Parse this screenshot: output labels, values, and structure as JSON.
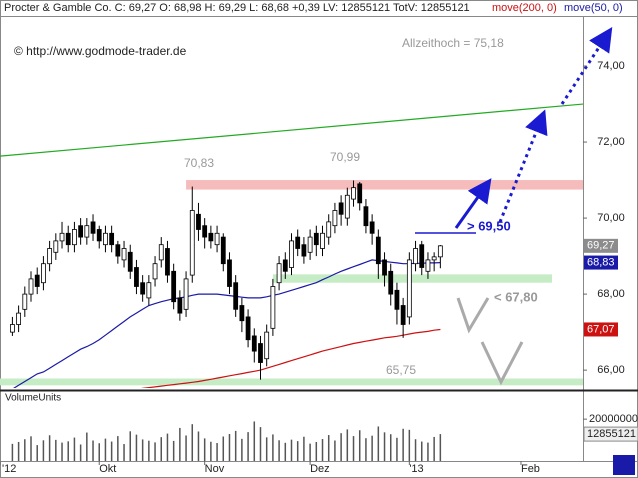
{
  "chart_data": [
    {
      "type": "candlestick",
      "title": "Procter & Gamble Co. C: 69,27 O: 68,98 H: 69,29 L: 68,68 +0,39 LV: 12855121 TotV: 12855121",
      "xlim": [
        -2,
        92
      ],
      "xticks": [
        {
          "value": -2,
          "label": "'12"
        },
        {
          "value": 14,
          "label": "Okt"
        },
        {
          "value": 31,
          "label": "Nov"
        },
        {
          "value": 48,
          "label": "Dez"
        },
        {
          "value": 64,
          "label": "'13"
        },
        {
          "value": 82,
          "label": "Feb"
        }
      ],
      "ylim": [
        65.53,
        75.29
      ],
      "yticks": [
        {
          "value": 66,
          "label": "66,00"
        },
        {
          "value": 68,
          "label": "68,00"
        },
        {
          "value": 70,
          "label": "70,00"
        },
        {
          "value": 72,
          "label": "72,00"
        },
        {
          "value": 74,
          "label": "74,00"
        }
      ],
      "open": [
        67.0,
        67.2,
        67.6,
        68.0,
        68.5,
        68.3,
        68.8,
        69.1,
        69.4,
        69.6,
        69.3,
        69.8,
        69.5,
        69.9,
        69.7,
        69.3,
        69.6,
        69.3,
        68.9,
        69.1,
        68.7,
        68.3,
        67.9,
        68.4,
        68.9,
        69.2,
        68.6,
        67.9,
        67.6,
        68.5,
        70.1,
        69.8,
        69.6,
        69.3,
        69.5,
        68.9,
        68.3,
        67.7,
        67.4,
        66.9,
        66.7,
        66.3,
        67.1,
        68.3,
        68.9,
        68.7,
        69.5,
        69.3,
        69.1,
        69.6,
        69.2,
        69.5,
        69.8,
        70.4,
        70.0,
        70.5,
        70.9,
        70.3,
        69.9,
        69.5,
        68.9,
        68.6,
        68.1,
        67.7,
        67.4,
        68.8,
        69.3,
        68.6,
        68.9,
        68.98
      ],
      "high": [
        67.4,
        67.7,
        68.2,
        68.6,
        68.7,
        69.0,
        69.4,
        69.6,
        69.9,
        69.8,
        69.9,
        70.0,
        70.0,
        70.1,
        69.8,
        69.8,
        69.8,
        69.4,
        69.4,
        69.3,
        68.9,
        68.5,
        68.5,
        69.0,
        69.5,
        69.4,
        68.8,
        68.1,
        68.6,
        70.83,
        70.4,
        70.0,
        69.8,
        69.8,
        69.6,
        69.1,
        68.5,
        67.9,
        67.6,
        67.1,
        66.9,
        67.2,
        68.4,
        69.0,
        69.1,
        69.6,
        69.7,
        69.5,
        69.7,
        69.8,
        69.8,
        70.1,
        70.4,
        70.6,
        70.8,
        70.99,
        70.95,
        70.5,
        70.1,
        69.7,
        69.1,
        68.8,
        68.3,
        67.9,
        69.1,
        69.4,
        69.4,
        69.1,
        69.1,
        69.29
      ],
      "low": [
        66.9,
        67.0,
        67.4,
        67.8,
        68.0,
        68.1,
        68.6,
        68.9,
        69.2,
        69.1,
        69.1,
        69.3,
        69.3,
        69.4,
        69.2,
        69.1,
        69.1,
        68.8,
        68.7,
        68.4,
        68.0,
        67.8,
        67.7,
        68.2,
        68.7,
        68.3,
        67.6,
        67.3,
        67.4,
        68.3,
        69.4,
        69.2,
        69.2,
        69.1,
        68.6,
        68.0,
        67.4,
        67.0,
        66.6,
        66.2,
        65.75,
        66.1,
        66.9,
        68.1,
        68.4,
        68.5,
        69.0,
        68.8,
        68.9,
        69.0,
        69.0,
        69.3,
        69.6,
        69.8,
        69.8,
        70.3,
        70.2,
        69.6,
        69.3,
        68.4,
        68.2,
        67.7,
        67.2,
        66.85,
        67.2,
        68.6,
        68.5,
        68.4,
        68.6,
        68.68
      ],
      "close": [
        67.2,
        67.5,
        68.0,
        68.4,
        68.2,
        68.8,
        69.2,
        69.4,
        69.6,
        69.3,
        69.7,
        69.5,
        69.8,
        69.6,
        69.4,
        69.6,
        69.3,
        69.0,
        69.2,
        68.6,
        68.2,
        68.0,
        68.3,
        68.8,
        69.3,
        68.5,
        67.8,
        67.5,
        68.4,
        70.2,
        69.7,
        69.5,
        69.4,
        69.6,
        68.8,
        68.2,
        67.6,
        67.3,
        66.8,
        66.5,
        66.2,
        67.0,
        68.2,
        68.8,
        68.6,
        69.4,
        69.2,
        69.0,
        69.5,
        69.3,
        69.6,
        69.9,
        70.2,
        70.1,
        70.6,
        70.8,
        70.4,
        69.8,
        69.6,
        68.8,
        68.5,
        68.0,
        67.6,
        67.2,
        68.9,
        69.2,
        68.7,
        68.9,
        68.98,
        69.27
      ],
      "series": [
        {
          "name": "move(200, 0)",
          "color": "#cc1111",
          "values": [
            64.9,
            64.93,
            64.96,
            64.99,
            65.02,
            65.05,
            65.08,
            65.11,
            65.14,
            65.17,
            65.2,
            65.23,
            65.26,
            65.29,
            65.32,
            65.35,
            65.38,
            65.41,
            65.44,
            65.47,
            65.5,
            65.52,
            65.54,
            65.56,
            65.58,
            65.6,
            65.62,
            65.64,
            65.66,
            65.68,
            65.7,
            65.73,
            65.76,
            65.79,
            65.82,
            65.85,
            65.88,
            65.91,
            65.94,
            65.97,
            66.0,
            66.05,
            66.1,
            66.15,
            66.2,
            66.25,
            66.3,
            66.35,
            66.4,
            66.45,
            66.5,
            66.54,
            66.58,
            66.62,
            66.66,
            66.7,
            66.73,
            66.76,
            66.79,
            66.82,
            66.85,
            66.87,
            66.89,
            66.92,
            66.95,
            66.98,
            67.0,
            67.02,
            67.05,
            67.07
          ]
        },
        {
          "name": "move(50, 0)",
          "color": "#1a1aa8",
          "values": [
            65.5,
            65.6,
            65.7,
            65.8,
            65.9,
            65.95,
            66.05,
            66.15,
            66.25,
            66.35,
            66.45,
            66.55,
            66.62,
            66.7,
            66.8,
            66.92,
            67.04,
            67.16,
            67.28,
            67.4,
            67.5,
            67.6,
            67.7,
            67.75,
            67.8,
            67.84,
            67.88,
            67.9,
            67.93,
            67.97,
            68.0,
            68.0,
            68.0,
            68.0,
            67.98,
            67.96,
            67.94,
            67.92,
            67.9,
            67.9,
            67.9,
            67.93,
            67.97,
            68.0,
            68.05,
            68.1,
            68.15,
            68.2,
            68.25,
            68.3,
            68.38,
            68.45,
            68.53,
            68.6,
            68.66,
            68.72,
            68.78,
            68.84,
            68.9,
            68.88,
            68.86,
            68.84,
            68.82,
            68.8,
            68.8,
            68.81,
            68.81,
            68.82,
            68.82,
            68.83
          ]
        }
      ],
      "price_labels": [
        {
          "value": 69.27,
          "label": "69,27",
          "color": "#8c8c8c"
        },
        {
          "value": 68.83,
          "label": "68,83",
          "color": "#1a1aa8"
        },
        {
          "value": 67.07,
          "label": "67,07",
          "color": "#cc1111"
        }
      ],
      "trendline": {
        "color": "#22aa22",
        "values": [
          71.63,
          73.0
        ]
      },
      "zones": [
        {
          "from": 70.75,
          "to": 71.0,
          "start": 28,
          "color": "#f6bcbc"
        },
        {
          "from": 68.3,
          "to": 68.52,
          "start": 42,
          "end": 87,
          "color": "#c6ecc6"
        },
        {
          "from": 65.6,
          "to": 65.78,
          "color": "#c6ecc6"
        }
      ],
      "annotations": [
        "© http://www.godmode-trader.de",
        "Allzeithoch  =  75,18",
        "70,83",
        "70,99",
        "> 69,50",
        "< 67,80",
        "65,75"
      ]
    },
    {
      "type": "bar",
      "title": "VolumeUnits",
      "color": "#555555",
      "ylim": [
        0,
        32500000
      ],
      "yticks": [
        20000000
      ],
      "values": [
        8200000,
        9100000,
        10400000,
        11800000,
        7600000,
        9900000,
        12300000,
        10100000,
        8800000,
        9400000,
        11200000,
        7900000,
        13600000,
        9800000,
        8500000,
        10700000,
        9300000,
        11900000,
        8100000,
        14200000,
        12600000,
        10300000,
        9700000,
        8900000,
        11400000,
        13100000,
        9600000,
        15800000,
        12200000,
        17600000,
        14100000,
        10800000,
        9200000,
        8600000,
        11700000,
        12900000,
        14400000,
        10600000,
        13800000,
        18900000,
        16200000,
        11300000,
        12700000,
        9900000,
        8700000,
        10200000,
        9500000,
        11600000,
        8300000,
        9100000,
        10500000,
        12400000,
        9800000,
        13300000,
        15100000,
        11900000,
        14700000,
        10900000,
        12100000,
        16500000,
        13700000,
        12800000,
        11100000,
        15400000,
        14900000,
        10400000,
        9300000,
        8800000,
        11500000,
        12855121
      ]
    }
  ]
}
